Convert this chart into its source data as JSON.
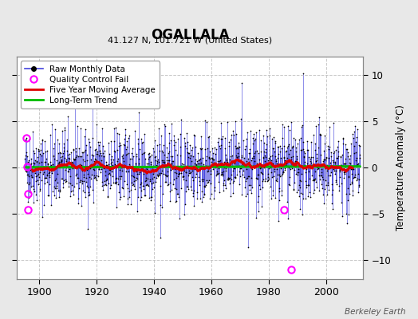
{
  "title": "OGALLALA",
  "subtitle": "41.127 N, 101.721 W (United States)",
  "ylabel": "Temperature Anomaly (°C)",
  "credit": "Berkeley Earth",
  "ylim": [
    -12,
    12
  ],
  "yticks": [
    -10,
    -5,
    0,
    5,
    10
  ],
  "xlim": [
    1892,
    2013
  ],
  "xticks": [
    1900,
    1920,
    1940,
    1960,
    1980,
    2000
  ],
  "background_color": "#e8e8e8",
  "plot_bg_color": "#ffffff",
  "grid_color": "#bbbbbb",
  "raw_line_color": "#4444dd",
  "raw_dot_color": "#000000",
  "qc_fail_color": "#ff00ff",
  "moving_avg_color": "#dd0000",
  "trend_color": "#00bb00",
  "seed": 42,
  "year_start": 1895,
  "year_end": 2011,
  "qc_fail_data": [
    [
      1895.5,
      3.2
    ],
    [
      1895.7,
      0.1
    ],
    [
      1895.9,
      -2.8
    ],
    [
      1896.1,
      -4.5
    ],
    [
      1985.5,
      -4.5
    ],
    [
      1988.0,
      -11.0
    ]
  ]
}
